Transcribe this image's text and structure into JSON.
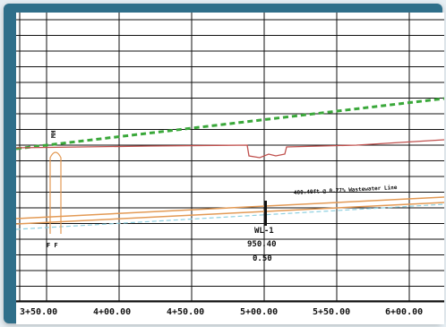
{
  "profile": {
    "stations": [
      "3+50.00",
      "4+00.00",
      "4+50.00",
      "5+00.00",
      "5+50.00",
      "6+00.00"
    ],
    "pipe_label": "400.40ft @ 0.77% Wastewater Line",
    "structure": {
      "id": "WL-1",
      "elevation": "950.40",
      "value": "0.50"
    },
    "left_marker_top": "MH",
    "left_marker_bottom": "F F",
    "colors": {
      "background": "#ffffff",
      "grid": "#111111",
      "ground_line": "#3aa83a",
      "existing_grade": "#c0504d",
      "pipe": "#e39a55",
      "hydraulic_grade": "#8fd0e0",
      "frame": "#2f6f8a"
    }
  }
}
